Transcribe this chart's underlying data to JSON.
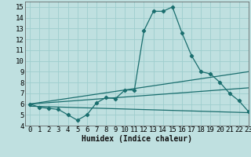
{
  "xlabel": "Humidex (Indice chaleur)",
  "bg_color": "#bfe0e0",
  "grid_color": "#9ecece",
  "line_color": "#1a6e6e",
  "xlim": [
    -0.5,
    23
  ],
  "ylim": [
    4,
    15.5
  ],
  "x_ticks": [
    0,
    1,
    2,
    3,
    4,
    5,
    6,
    7,
    8,
    9,
    10,
    11,
    12,
    13,
    14,
    15,
    16,
    17,
    18,
    19,
    20,
    21,
    22,
    23
  ],
  "y_ticks": [
    4,
    5,
    6,
    7,
    8,
    9,
    10,
    11,
    12,
    13,
    14,
    15
  ],
  "series1_x": [
    0,
    1,
    2,
    3,
    4,
    5,
    6,
    7,
    8,
    9,
    10,
    11,
    12,
    13,
    14,
    15,
    16,
    17,
    18,
    19,
    20,
    21,
    22,
    23
  ],
  "series1_y": [
    6.0,
    5.7,
    5.6,
    5.5,
    5.0,
    4.5,
    5.0,
    6.1,
    6.6,
    6.5,
    7.3,
    7.3,
    12.8,
    14.6,
    14.6,
    15.0,
    12.6,
    10.5,
    9.0,
    8.8,
    8.0,
    7.0,
    6.3,
    5.3
  ],
  "line1_x": [
    0,
    23
  ],
  "line1_y": [
    6.0,
    9.0
  ],
  "line2_x": [
    0,
    23
  ],
  "line2_y": [
    6.0,
    7.5
  ],
  "line3_x": [
    0,
    23
  ],
  "line3_y": [
    5.8,
    5.2
  ]
}
